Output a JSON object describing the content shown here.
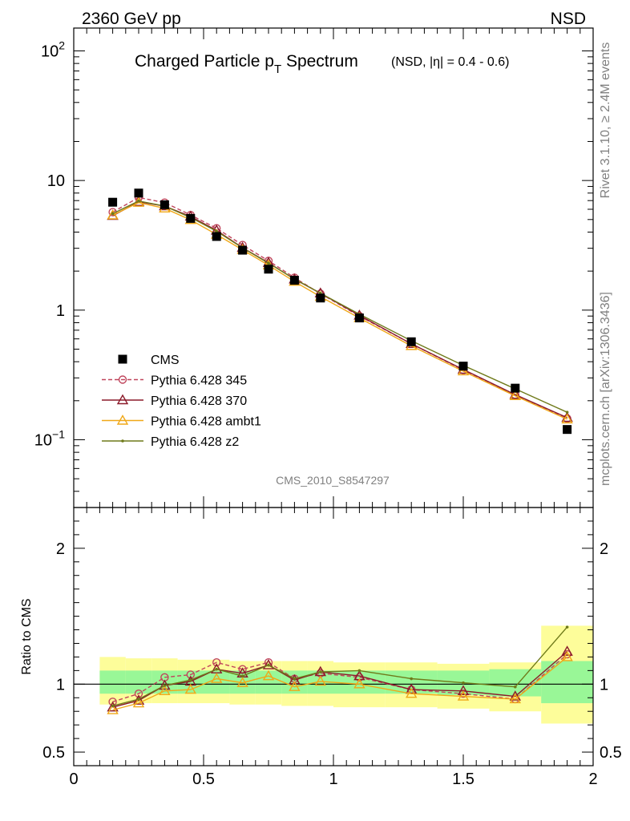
{
  "header": {
    "left": "2360 GeV pp",
    "right": "NSD",
    "side_top": "Rivet 3.1.10, ≥ 2.4M events",
    "side_bottom": "mcplots.cern.ch [arXiv:1306.3436]",
    "watermark": "CMS_2010_S8547297"
  },
  "title": {
    "main_pre": "Charged Particle p",
    "main_sub": "T",
    "main_post": " Spectrum",
    "qualifier": "(NSD, |η| = 0.4 - 0.6)"
  },
  "ratio_ylabel": "Ratio to CMS",
  "colors": {
    "data": "#000000",
    "p345": "#c0455c",
    "p370": "#8b1a2a",
    "ambt1": "#f0a818",
    "z2": "#6f7a1a",
    "band_inner": "#99f797",
    "band_outer": "#fdfd9a"
  },
  "chart_data": [
    {
      "type": "scatter",
      "name": "main",
      "yscale": "log",
      "xlim": [
        0,
        2
      ],
      "ylim": [
        0.03,
        150
      ],
      "y_ticks": [
        {
          "v": 100,
          "base": "10",
          "exp": "2"
        },
        {
          "v": 10,
          "base": "10",
          "exp": ""
        },
        {
          "v": 1,
          "base": "1",
          "exp": ""
        },
        {
          "v": 0.1,
          "base": "10",
          "exp": "−1"
        }
      ],
      "x": [
        0.15,
        0.25,
        0.35,
        0.45,
        0.55,
        0.65,
        0.75,
        0.85,
        0.95,
        1.1,
        1.3,
        1.5,
        1.7,
        1.9
      ],
      "series": [
        {
          "name": "CMS",
          "key": "data",
          "style": "square",
          "values": [
            6.8,
            8.0,
            6.5,
            5.1,
            3.7,
            2.9,
            2.07,
            1.7,
            1.24,
            0.87,
            0.57,
            0.37,
            0.25,
            0.12
          ]
        },
        {
          "name": "Pythia 6.428 345",
          "key": "p345",
          "style": "circle",
          "dashed": true,
          "values": [
            5.7,
            7.4,
            6.75,
            5.42,
            4.28,
            3.18,
            2.4,
            1.78,
            1.34,
            0.9,
            0.55,
            0.345,
            0.222,
            0.146
          ]
        },
        {
          "name": "Pythia 6.428 370",
          "key": "p370",
          "style": "triangle",
          "values": [
            5.35,
            6.85,
            6.35,
            5.28,
            4.12,
            3.03,
            2.32,
            1.73,
            1.35,
            0.91,
            0.55,
            0.348,
            0.223,
            0.148
          ]
        },
        {
          "name": "Pythia 6.428 ambt1",
          "key": "ambt1",
          "style": "triangle",
          "values": [
            5.4,
            6.75,
            6.1,
            4.97,
            3.83,
            2.92,
            2.22,
            1.66,
            1.27,
            0.87,
            0.53,
            0.338,
            0.218,
            0.144
          ]
        },
        {
          "name": "Pythia 6.428 z2",
          "key": "z2",
          "style": "dot",
          "values": [
            5.55,
            6.95,
            6.35,
            5.18,
            4.06,
            3.02,
            2.3,
            1.74,
            1.35,
            0.93,
            0.58,
            0.375,
            0.247,
            0.163
          ]
        }
      ]
    },
    {
      "type": "line",
      "name": "ratio",
      "xlim": [
        0,
        2
      ],
      "ylim": [
        0.4,
        2.3
      ],
      "x_ticks": [
        "0",
        "0.5",
        "1",
        "1.5",
        "2"
      ],
      "y_ticks": [
        "0.5",
        "1",
        "2"
      ],
      "x": [
        0.15,
        0.25,
        0.35,
        0.45,
        0.55,
        0.65,
        0.75,
        0.85,
        0.95,
        1.1,
        1.3,
        1.5,
        1.7,
        1.9
      ],
      "band_bins": [
        [
          0.1,
          0.2
        ],
        [
          0.2,
          0.3
        ],
        [
          0.3,
          0.4
        ],
        [
          0.4,
          0.5
        ],
        [
          0.5,
          0.6
        ],
        [
          0.6,
          0.7
        ],
        [
          0.7,
          0.8
        ],
        [
          0.8,
          0.9
        ],
        [
          0.9,
          1.0
        ],
        [
          1.0,
          1.2
        ],
        [
          1.2,
          1.4
        ],
        [
          1.4,
          1.6
        ],
        [
          1.6,
          1.8
        ],
        [
          1.8,
          2.0
        ]
      ],
      "band_inner": [
        [
          0.93,
          1.1
        ],
        [
          0.93,
          1.1
        ],
        [
          0.93,
          1.1
        ],
        [
          0.93,
          1.1
        ],
        [
          0.93,
          1.1
        ],
        [
          0.93,
          1.1
        ],
        [
          0.93,
          1.1
        ],
        [
          0.93,
          1.1
        ],
        [
          0.93,
          1.1
        ],
        [
          0.93,
          1.1
        ],
        [
          0.93,
          1.1
        ],
        [
          0.92,
          1.1
        ],
        [
          0.91,
          1.11
        ],
        [
          0.86,
          1.17
        ]
      ],
      "band_outer": [
        [
          0.85,
          1.2
        ],
        [
          0.86,
          1.19
        ],
        [
          0.86,
          1.19
        ],
        [
          0.86,
          1.18
        ],
        [
          0.86,
          1.18
        ],
        [
          0.85,
          1.17
        ],
        [
          0.85,
          1.17
        ],
        [
          0.84,
          1.17
        ],
        [
          0.84,
          1.17
        ],
        [
          0.83,
          1.16
        ],
        [
          0.83,
          1.16
        ],
        [
          0.82,
          1.15
        ],
        [
          0.8,
          1.16
        ],
        [
          0.71,
          1.43
        ]
      ],
      "series": [
        {
          "name": "Pythia 6.428 345",
          "key": "p345",
          "style": "circle",
          "dashed": true,
          "values": [
            0.87,
            0.93,
            1.05,
            1.07,
            1.16,
            1.11,
            1.16,
            1.04,
            1.08,
            1.05,
            0.96,
            0.93,
            0.89,
            1.22
          ]
        },
        {
          "name": "Pythia 6.428 370",
          "key": "p370",
          "style": "triangle",
          "values": [
            0.83,
            0.88,
            0.99,
            1.02,
            1.11,
            1.08,
            1.14,
            1.03,
            1.09,
            1.06,
            0.96,
            0.95,
            0.91,
            1.24
          ]
        },
        {
          "name": "Pythia 6.428 ambt1",
          "key": "ambt1",
          "style": "triangle",
          "values": [
            0.81,
            0.86,
            0.95,
            0.96,
            1.04,
            1.01,
            1.06,
            0.98,
            1.02,
            1.0,
            0.93,
            0.91,
            0.89,
            1.2
          ]
        },
        {
          "name": "Pythia 6.428 z2",
          "key": "z2",
          "style": "dot",
          "values": [
            0.84,
            0.89,
            0.99,
            1.03,
            1.11,
            1.06,
            1.14,
            1.04,
            1.09,
            1.1,
            1.04,
            1.01,
            0.98,
            1.42
          ]
        }
      ]
    }
  ]
}
